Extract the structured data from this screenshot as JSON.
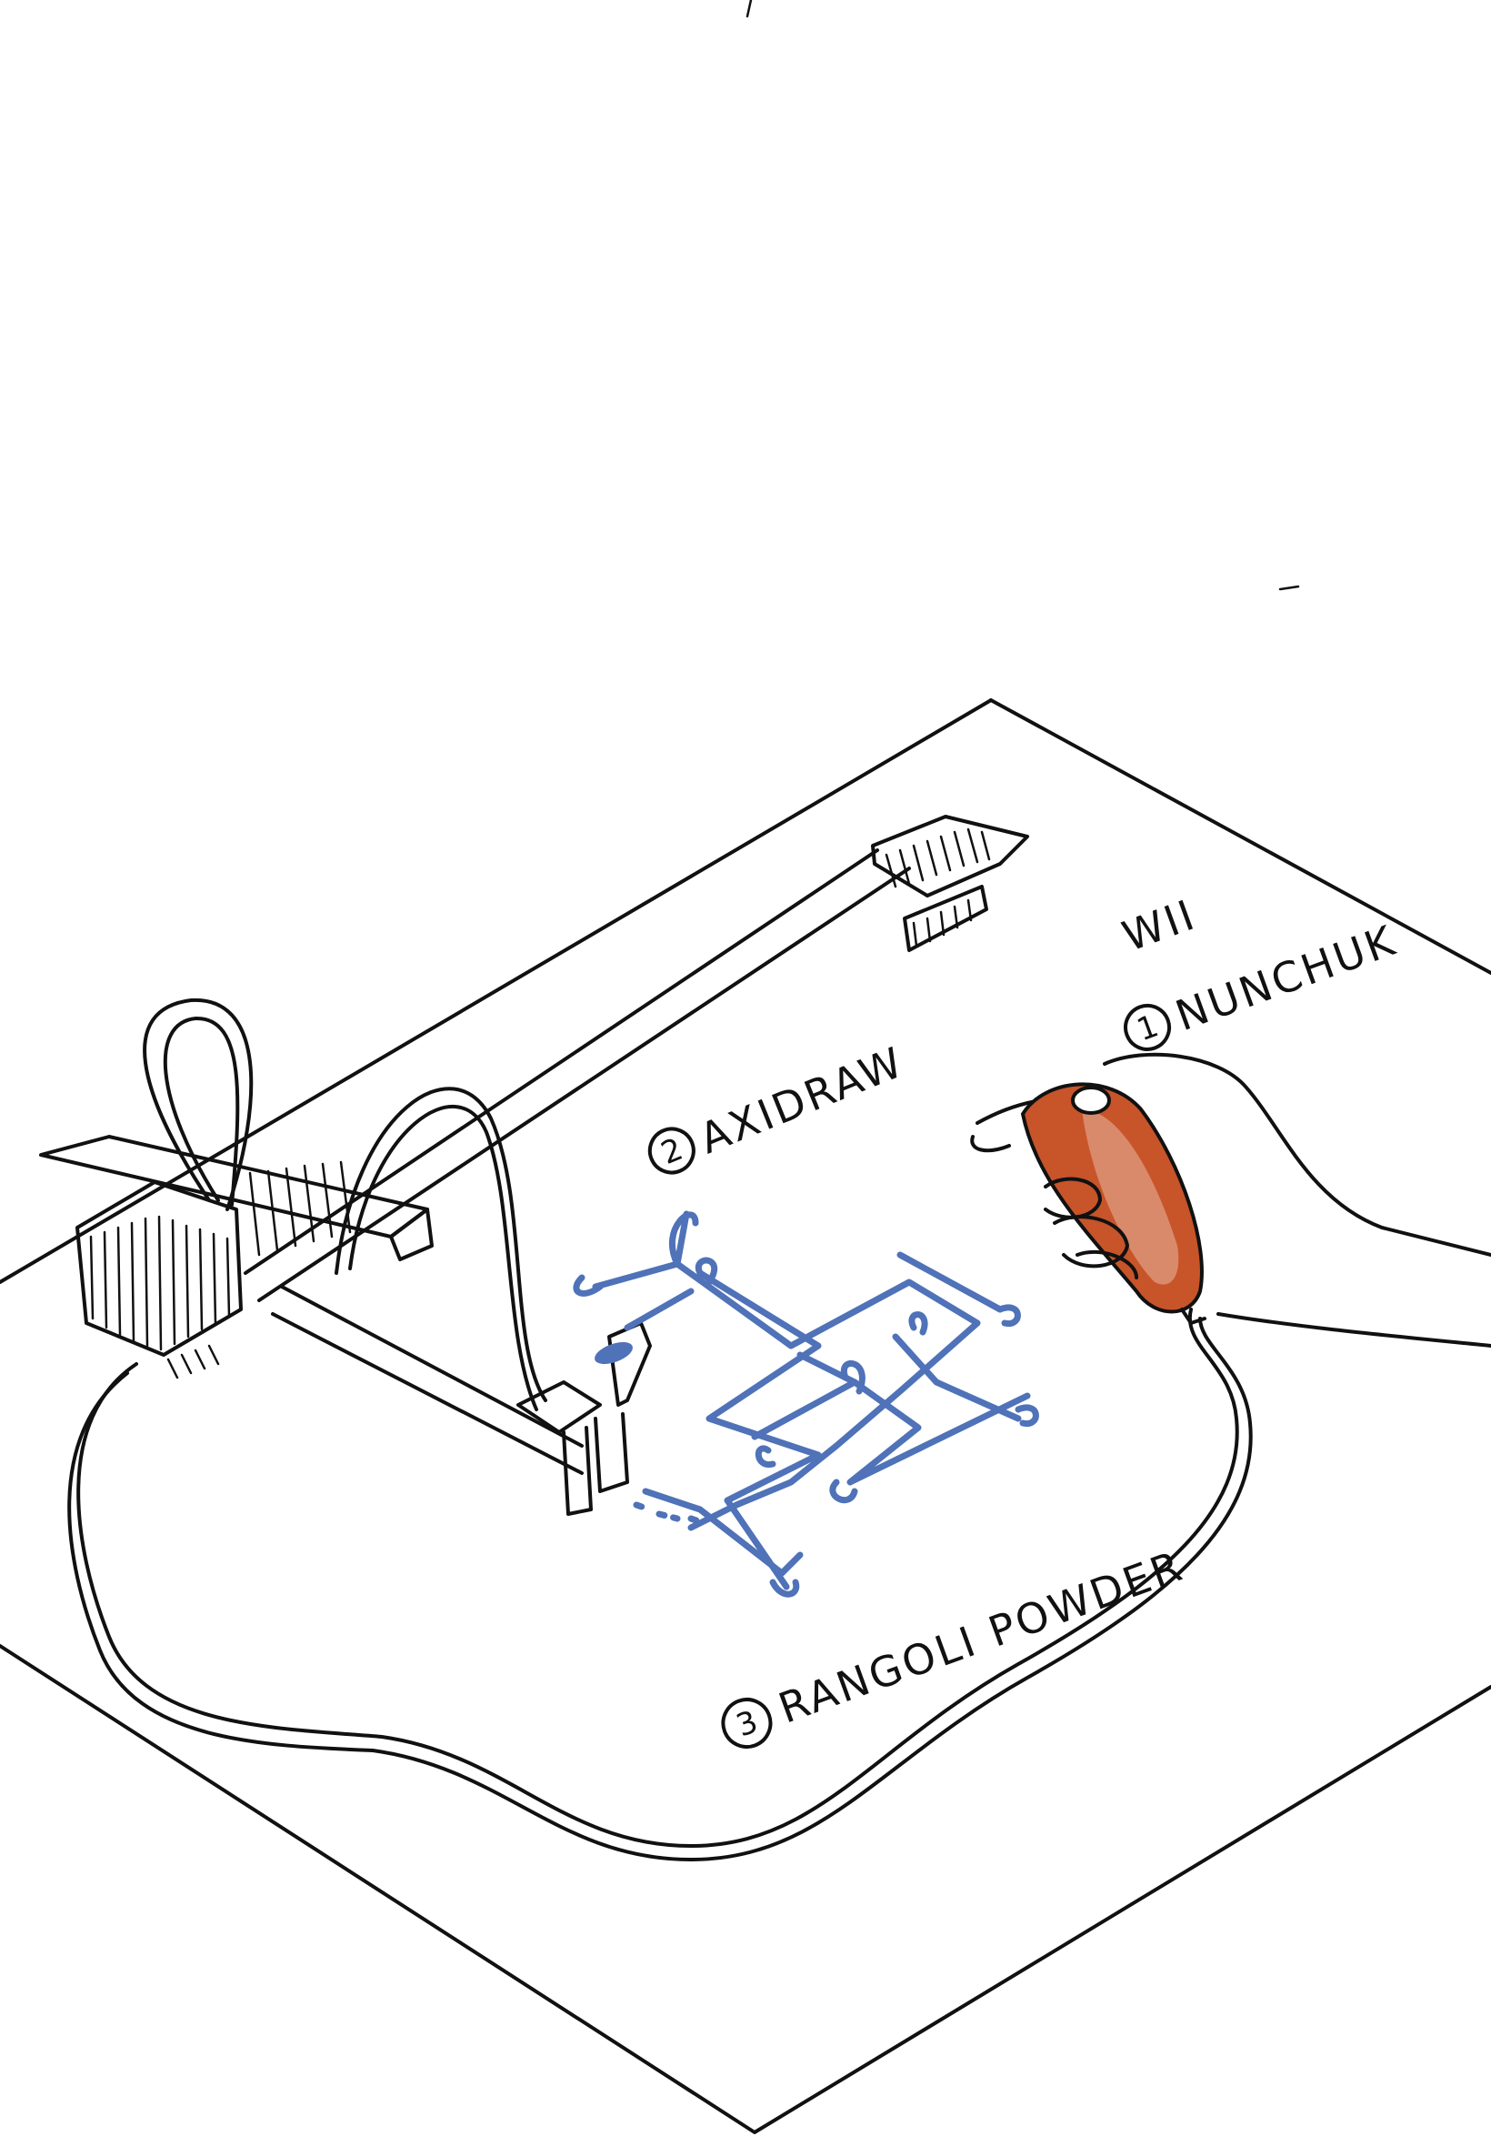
{
  "labels": {
    "axidraw": {
      "number": "2",
      "text": "AXIDRAW"
    },
    "nunchuk": {
      "number": "1",
      "line1": "WII",
      "line2": "NUNCHUK"
    },
    "rangoli": {
      "number": "3",
      "text": "RANGOLI POWDER"
    }
  },
  "colors": {
    "ink": "#111111",
    "rangoli_blue": "#4f72b8",
    "nunchuk_orange": "#c8542a",
    "nunchuk_light": "#d98a6a"
  }
}
